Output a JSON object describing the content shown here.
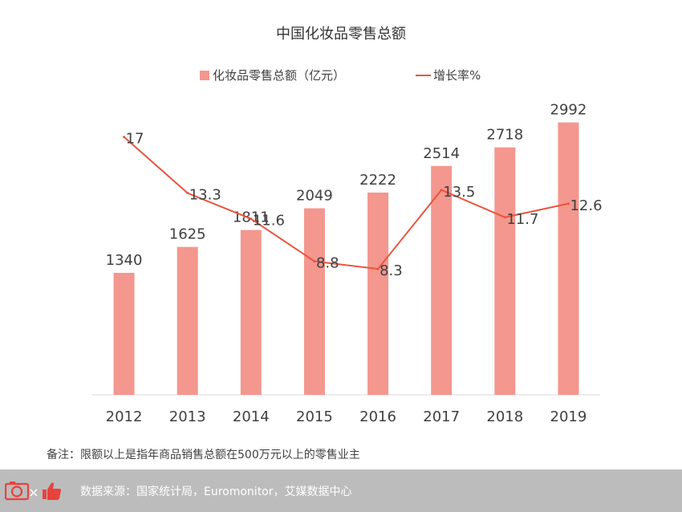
{
  "chart_data": {
    "type": "bar",
    "title": "中国化妆品零售总额",
    "categories": [
      "2012",
      "2013",
      "2014",
      "2015",
      "2016",
      "2017",
      "2018",
      "2019"
    ],
    "series": [
      {
        "name": "化妆品零售总额（亿元）",
        "type": "bar",
        "values": [
          1340,
          1625,
          1811,
          2049,
          2222,
          2514,
          2718,
          2992
        ],
        "labels": [
          "1340",
          "1625",
          "1811",
          "2049",
          "2222",
          "2514",
          "2718",
          "2992"
        ],
        "color": "#f4978e"
      },
      {
        "name": "增长率%",
        "type": "line",
        "values": [
          17,
          13.3,
          11.6,
          8.8,
          8.3,
          13.5,
          11.7,
          12.6
        ],
        "labels": [
          "17",
          "13.3",
          "11.6",
          "8.8",
          "8.3",
          "13.5",
          "11.7",
          "12.6"
        ],
        "color": "#e8553e"
      }
    ],
    "ylim_bar": [
      0,
      3050
    ],
    "ylim_line": [
      0,
      18.3
    ],
    "legend_position": "top",
    "grid": false
  },
  "note": "备注：限额以上是指年商品销售总额在500万元以上的零售业主",
  "footer": {
    "source": "数据来源：国家统计局，Euromonitor，艾媒数据中心",
    "logo_separator": "×",
    "logo_icons": [
      "camera-icon",
      "thumbs-up-icon"
    ]
  }
}
